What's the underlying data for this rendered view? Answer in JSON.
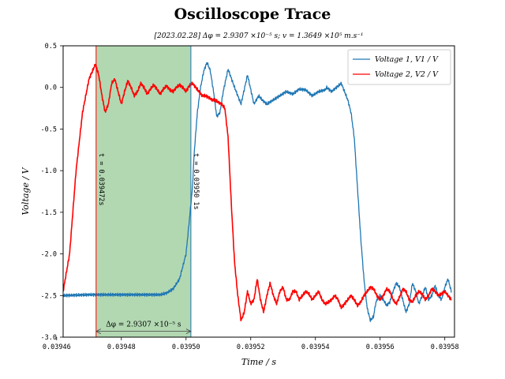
{
  "chart_data": {
    "type": "line",
    "title": "Oscilloscope Trace",
    "subtitle": "[2023.02.28] Δφ = 2.9307 ×10⁻⁵ s; v = 1.3649 ×10⁵ m.s⁻¹",
    "xlabel": "Time / s",
    "ylabel": "Voltage / V",
    "xlim": [
      0.039462,
      0.039583
    ],
    "ylim": [
      -3.0,
      0.5
    ],
    "xticks": [
      "0.03946",
      "0.03948",
      "0.03950",
      "0.03952",
      "0.03954",
      "0.03956",
      "0.03958"
    ],
    "yticks": [
      "0.5",
      "0.0",
      "-0.5",
      "-1.0",
      "-1.5",
      "-2.0",
      "-2.5",
      "-3.0"
    ],
    "legend_position": "top-right",
    "grid": false,
    "series": [
      {
        "name": "Voltage 1, V1 / V",
        "color": "#1f77b4",
        "x": [
          0.039462,
          0.03947,
          0.03948,
          0.039488,
          0.039492,
          0.039494,
          0.039496,
          0.039498,
          0.0395,
          0.039502,
          0.0395025,
          0.0395035,
          0.0395045,
          0.0395055,
          0.0395065,
          0.0395075,
          0.0395085,
          0.0395095,
          0.0395105,
          0.0395115,
          0.039513,
          0.039515,
          0.039517,
          0.039519,
          0.039521,
          0.0395225,
          0.0395235,
          0.039525,
          0.039527,
          0.039529,
          0.039531,
          0.039533,
          0.039535,
          0.039537,
          0.039539,
          0.039541,
          0.039543,
          0.0395435,
          0.039545,
          0.0395465,
          0.039548,
          0.039549,
          0.03955,
          0.039551,
          0.039552,
          0.039553,
          0.039554,
          0.039555,
          0.039556,
          0.039557,
          0.039558,
          0.0395585,
          0.039559,
          0.03956,
          0.039561,
          0.039562,
          0.039563,
          0.039564,
          0.039565,
          0.039566,
          0.039567,
          0.039568,
          0.039569,
          0.03957,
          0.039571,
          0.039572,
          0.039573,
          0.039574,
          0.039575,
          0.039576,
          0.039577,
          0.039578,
          0.039579,
          0.03958,
          0.039581,
          0.039582
        ],
        "y": [
          -2.5,
          -2.49,
          -2.49,
          -2.49,
          -2.49,
          -2.47,
          -2.42,
          -2.3,
          -2.0,
          -1.2,
          -0.8,
          -0.3,
          0.0,
          0.2,
          0.3,
          0.2,
          -0.05,
          -0.35,
          -0.3,
          -0.05,
          0.22,
          0.0,
          -0.2,
          0.15,
          -0.2,
          -0.1,
          -0.15,
          -0.2,
          -0.15,
          -0.1,
          -0.05,
          -0.08,
          -0.02,
          -0.03,
          -0.1,
          -0.05,
          -0.03,
          0.0,
          -0.05,
          0.0,
          0.05,
          -0.05,
          -0.15,
          -0.3,
          -0.6,
          -1.2,
          -1.8,
          -2.3,
          -2.65,
          -2.8,
          -2.75,
          -2.62,
          -2.55,
          -2.5,
          -2.55,
          -2.62,
          -2.58,
          -2.45,
          -2.35,
          -2.4,
          -2.55,
          -2.7,
          -2.6,
          -2.35,
          -2.45,
          -2.6,
          -2.5,
          -2.4,
          -2.55,
          -2.5,
          -2.38,
          -2.5,
          -2.55,
          -2.4,
          -2.3,
          -2.45
        ],
        "note": "Approximate envelope; fine ripple added in rendering."
      },
      {
        "name": "Voltage 2, V2 / V",
        "color": "#ff0000",
        "x": [
          0.039462,
          0.039464,
          0.039466,
          0.039468,
          0.03947,
          0.039472,
          0.039473,
          0.039474,
          0.039475,
          0.039476,
          0.039477,
          0.039478,
          0.039479,
          0.03948,
          0.039481,
          0.039482,
          0.039483,
          0.039484,
          0.039485,
          0.039486,
          0.039487,
          0.039488,
          0.039489,
          0.03949,
          0.039491,
          0.039492,
          0.039493,
          0.039494,
          0.039495,
          0.039496,
          0.039497,
          0.039498,
          0.039499,
          0.0395,
          0.039501,
          0.039502,
          0.039503,
          0.039504,
          0.039505,
          0.039506,
          0.039507,
          0.039508,
          0.039509,
          0.03951,
          0.039511,
          0.039512,
          0.039513,
          0.039514,
          0.039515,
          0.039516,
          0.039517,
          0.039518,
          0.039519,
          0.03952,
          0.039521,
          0.039522,
          0.039523,
          0.039524,
          0.039525,
          0.039526,
          0.039527,
          0.039528,
          0.039529,
          0.03953,
          0.039531,
          0.039532,
          0.039533,
          0.039534,
          0.039535,
          0.039536,
          0.039537,
          0.039538,
          0.039539,
          0.03954,
          0.039541,
          0.039542,
          0.039543,
          0.039544,
          0.039545,
          0.039546,
          0.039547,
          0.039548,
          0.039549,
          0.03955,
          0.039551,
          0.039552,
          0.039553,
          0.039554,
          0.039555,
          0.039556,
          0.039557,
          0.039558,
          0.039559,
          0.03956,
          0.039561,
          0.039562,
          0.039563,
          0.039564,
          0.039565,
          0.039566,
          0.039567,
          0.039568,
          0.039569,
          0.03957,
          0.039571,
          0.039572,
          0.039573,
          0.039574,
          0.039575,
          0.039576,
          0.039577,
          0.039578,
          0.039579,
          0.03958,
          0.039581,
          0.039582
        ],
        "y": [
          -2.45,
          -2.0,
          -1.0,
          -0.3,
          0.1,
          0.28,
          0.15,
          -0.1,
          -0.3,
          -0.2,
          0.05,
          0.1,
          -0.05,
          -0.2,
          -0.05,
          0.08,
          0.0,
          -0.1,
          -0.05,
          0.05,
          0.0,
          -0.08,
          -0.02,
          0.03,
          -0.02,
          -0.08,
          -0.02,
          0.02,
          -0.03,
          -0.05,
          0.0,
          0.03,
          0.0,
          -0.05,
          0.02,
          0.05,
          0.0,
          -0.05,
          -0.1,
          -0.1,
          -0.12,
          -0.15,
          -0.15,
          -0.18,
          -0.2,
          -0.25,
          -0.6,
          -1.4,
          -2.1,
          -2.5,
          -2.8,
          -2.7,
          -2.45,
          -2.6,
          -2.55,
          -2.3,
          -2.55,
          -2.7,
          -2.5,
          -2.35,
          -2.5,
          -2.6,
          -2.45,
          -2.4,
          -2.55,
          -2.55,
          -2.45,
          -2.45,
          -2.55,
          -2.5,
          -2.45,
          -2.48,
          -2.55,
          -2.5,
          -2.45,
          -2.55,
          -2.6,
          -2.58,
          -2.55,
          -2.5,
          -2.55,
          -2.65,
          -2.6,
          -2.55,
          -2.5,
          -2.55,
          -2.62,
          -2.58,
          -2.5,
          -2.45,
          -2.4,
          -2.42,
          -2.5,
          -2.55,
          -2.5,
          -2.42,
          -2.45,
          -2.55,
          -2.6,
          -2.52,
          -2.42,
          -2.45,
          -2.55,
          -2.58,
          -2.5,
          -2.45,
          -2.48,
          -2.55,
          -2.5,
          -2.42,
          -2.45,
          -2.5,
          -2.48,
          -2.45,
          -2.5,
          -2.55
        ]
      }
    ],
    "annotations": {
      "shade_x": [
        0.0394722,
        0.0395015
      ],
      "shade_color": "#b2d8b2",
      "vline1": {
        "x": 0.0394722,
        "color": "#ff0000",
        "label": "t = 0.039472s"
      },
      "vline2": {
        "x": 0.0395015,
        "color": "#1f77b4",
        "label": "t = 0.03950 1s"
      },
      "delta_label": "Δφ = 2.9307 ×10⁻⁵ s",
      "delta_y": -2.93
    }
  }
}
